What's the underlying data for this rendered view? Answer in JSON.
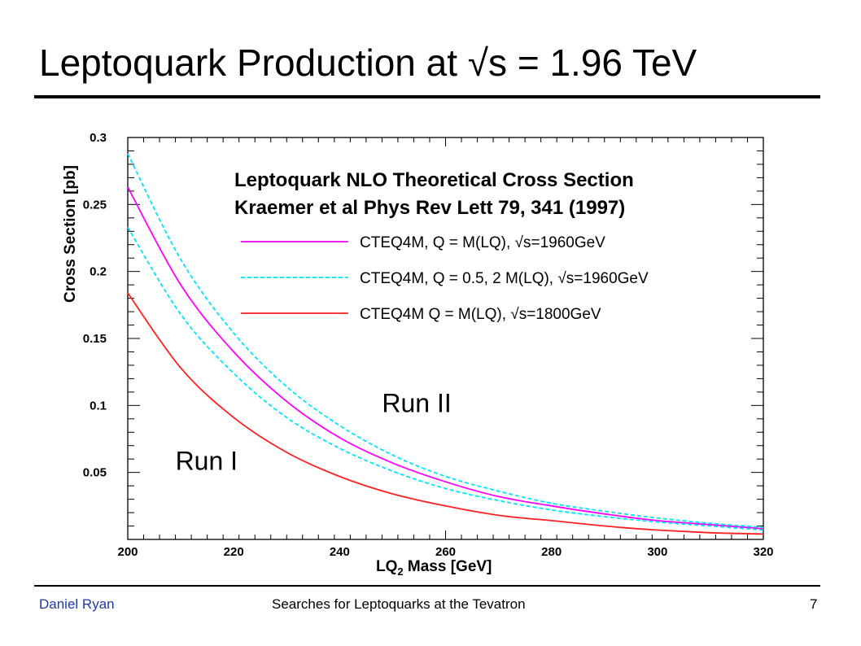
{
  "slide": {
    "title": "Leptoquark Production at √s = 1.96 TeV",
    "author": "Daniel Ryan",
    "talk_title": "Searches for Leptoquarks at the Tevatron",
    "page_number": "7"
  },
  "chart_data": {
    "type": "line",
    "title": "Leptoquark NLO Theoretical Cross Section",
    "subtitle": "Kraemer et al Phys Rev Lett 79, 341 (1997)",
    "xlabel": "LQ",
    "xlabel_sub": "2",
    "xlabel_rest": " Mass [GeV]",
    "ylabel": "Cross Section [pb]",
    "xlim": [
      200,
      320
    ],
    "ylim": [
      0,
      0.3
    ],
    "x_ticks": [
      "200",
      "220",
      "240",
      "260",
      "280",
      "300",
      "320"
    ],
    "y_ticks": [
      {
        "value": 0.05,
        "label": "0.05"
      },
      {
        "value": 0.1,
        "label": "0.1"
      },
      {
        "value": 0.15,
        "label": "0.15"
      },
      {
        "value": 0.2,
        "label": "0.2"
      },
      {
        "value": 0.25,
        "label": "0.25"
      },
      {
        "value": 0.3,
        "label": "0.3"
      }
    ],
    "grid": false,
    "legend_position": "top-right",
    "x": [
      200,
      210,
      220,
      230,
      240,
      250,
      260,
      270,
      280,
      290,
      300,
      310,
      320
    ],
    "series": [
      {
        "name": "CTEQ4M, Q = M(LQ), √s=1960GeV",
        "color": "#ff00ff",
        "dash": "solid",
        "values": [
          0.263,
          0.19,
          0.14,
          0.103,
          0.076,
          0.057,
          0.043,
          0.032,
          0.025,
          0.019,
          0.014,
          0.011,
          0.008
        ]
      },
      {
        "name": "CTEQ4M, Q = 0.5, 2 M(LQ), √s=1960GeV",
        "color": "#00e5ff",
        "dash": "dashed",
        "values": [
          0.288,
          0.209,
          0.154,
          0.114,
          0.085,
          0.063,
          0.047,
          0.036,
          0.027,
          0.021,
          0.016,
          0.012,
          0.009
        ]
      },
      {
        "name": "",
        "color": "#00e5ff",
        "dash": "dashed",
        "values": [
          0.233,
          0.168,
          0.124,
          0.091,
          0.068,
          0.051,
          0.038,
          0.029,
          0.022,
          0.017,
          0.013,
          0.01,
          0.007
        ]
      },
      {
        "name": "CTEQ4M Q = M(LQ), √s=1800GeV",
        "color": "#ff2020",
        "dash": "solid",
        "values": [
          0.184,
          0.128,
          0.091,
          0.065,
          0.047,
          0.034,
          0.025,
          0.018,
          0.014,
          0.01,
          0.007,
          0.005,
          0.004
        ]
      }
    ],
    "annotations": [
      {
        "text": "Run II",
        "x": 248,
        "y": 0.095
      },
      {
        "text": "Run I",
        "x": 209,
        "y": 0.052
      }
    ]
  }
}
